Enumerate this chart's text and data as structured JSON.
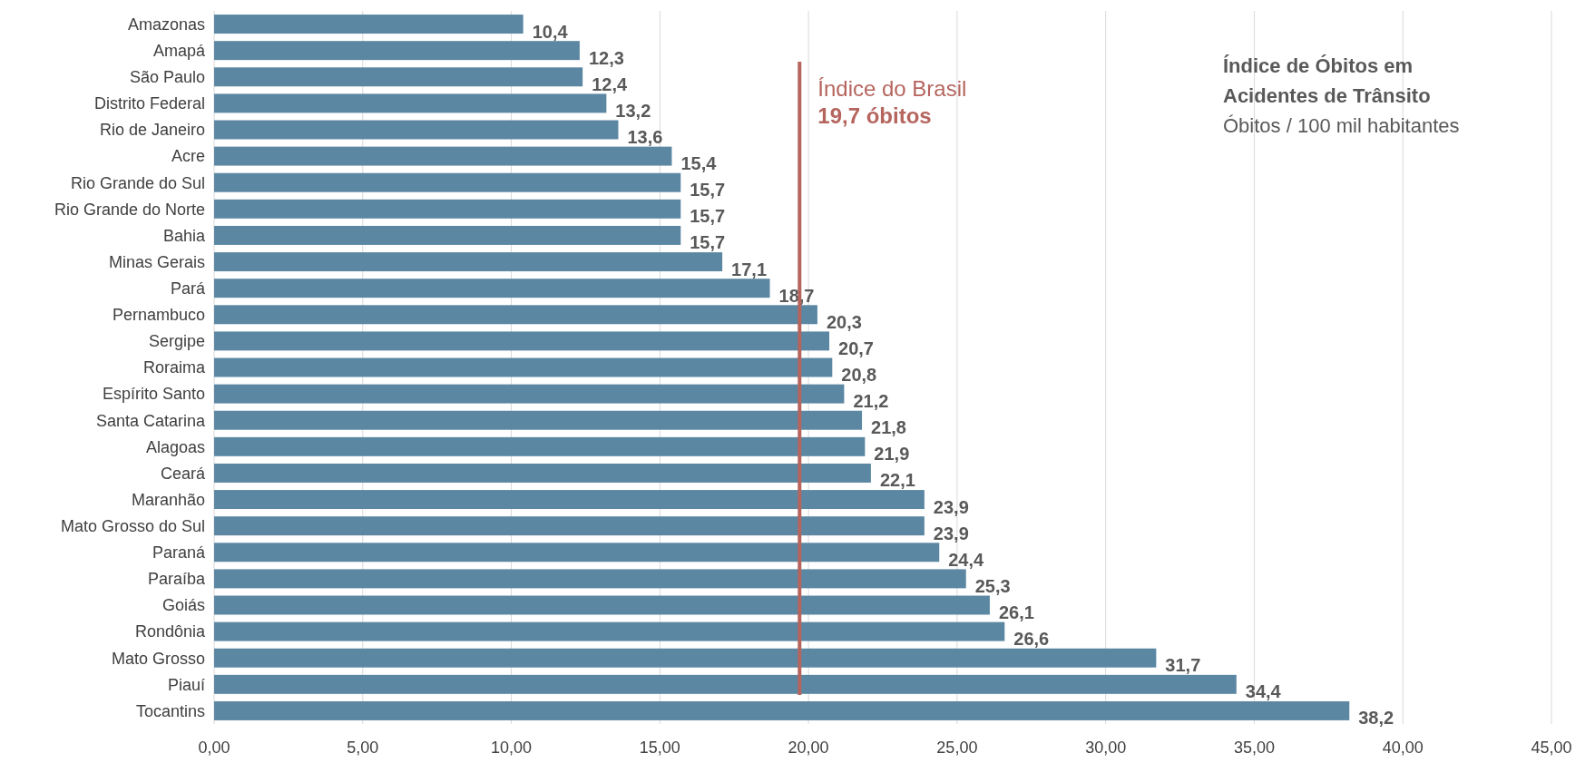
{
  "chart_data": {
    "type": "bar",
    "orientation": "horizontal",
    "title": "Índice de Óbitos em Acidentes de Trânsito",
    "subtitle": "Óbitos / 100 mil habitantes",
    "categories": [
      "Amazonas",
      "Amapá",
      "São Paulo",
      "Distrito Federal",
      "Rio de Janeiro",
      "Acre",
      "Rio Grande do Sul",
      "Rio Grande do Norte",
      "Bahia",
      "Minas Gerais",
      "Pará",
      "Pernambuco",
      "Sergipe",
      "Roraima",
      "Espírito Santo",
      "Santa Catarina",
      "Alagoas",
      "Ceará",
      "Maranhão",
      "Mato Grosso do Sul",
      "Paraná",
      "Paraíba",
      "Goiás",
      "Rondônia",
      "Mato Grosso",
      "Piauí",
      "Tocantins"
    ],
    "values": [
      10.4,
      12.3,
      12.4,
      13.2,
      13.6,
      15.4,
      15.7,
      15.7,
      15.7,
      17.1,
      18.7,
      20.3,
      20.7,
      20.8,
      21.2,
      21.8,
      21.9,
      22.1,
      23.9,
      23.9,
      24.4,
      25.3,
      26.1,
      26.6,
      31.7,
      34.4,
      38.2
    ],
    "value_labels": [
      "10,4",
      "12,3",
      "12,4",
      "13,2",
      "13,6",
      "15,4",
      "15,7",
      "15,7",
      "15,7",
      "17,1",
      "18,7",
      "20,3",
      "20,7",
      "20,8",
      "21,2",
      "21,8",
      "21,9",
      "22,1",
      "23,9",
      "23,9",
      "24,4",
      "25,3",
      "26,1",
      "26,6",
      "31,7",
      "34,4",
      "38,2"
    ],
    "color": "#5b87a3",
    "xlim": [
      0,
      45
    ],
    "xticks": [
      {
        "value": 0,
        "label": "0,00"
      },
      {
        "value": 5,
        "label": "5,00"
      },
      {
        "value": 10,
        "label": "10,00"
      },
      {
        "value": 15,
        "label": "15,00"
      },
      {
        "value": 20,
        "label": "20,00"
      },
      {
        "value": 25,
        "label": "25,00"
      },
      {
        "value": 30,
        "label": "30,00"
      },
      {
        "value": 35,
        "label": "35,00"
      },
      {
        "value": 40,
        "label": "40,00"
      },
      {
        "value": 45,
        "label": "45,00"
      }
    ],
    "grid": "x",
    "ref_lines": [
      {
        "axis": "x",
        "value": 19.7,
        "label": "Índice do Brasil\n19,7 óbitos",
        "color": "#b5655e"
      }
    ]
  }
}
